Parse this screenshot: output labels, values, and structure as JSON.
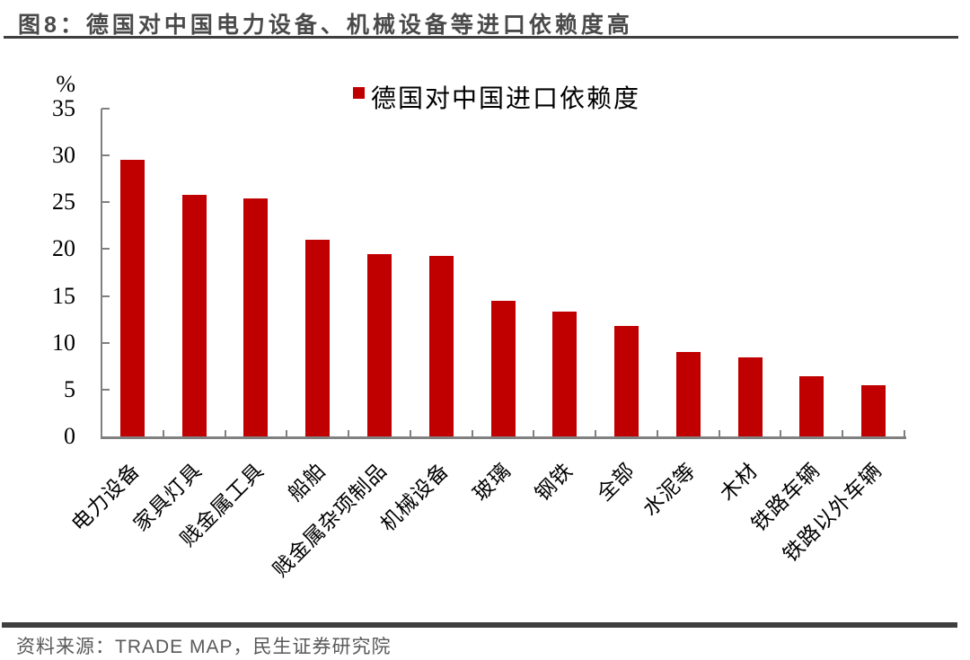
{
  "header": {
    "title": "图8：德国对中国电力设备、机械设备等进口依赖度高"
  },
  "footer": {
    "source": "资料来源：TRADE MAP，民生证券研究院"
  },
  "colors": {
    "accent": "#c00000",
    "title": "#4a4a4a",
    "rule": "#3f3f3f",
    "axis": "#808080",
    "text": "#000000",
    "source_text": "#595959"
  },
  "chart_data": {
    "type": "bar",
    "legend_label": "德国对中国进口依赖度",
    "legend_position": "top-center",
    "unit_label": "%",
    "categories": [
      "电力设备",
      "家具灯具",
      "贱金属工具",
      "船舶",
      "贱金属杂项制品",
      "机械设备",
      "玻璃",
      "钢铁",
      "全部",
      "水泥等",
      "木材",
      "铁路车辆",
      "铁路以外车辆"
    ],
    "values": [
      29.5,
      25.8,
      25.4,
      21.0,
      19.5,
      19.3,
      14.5,
      13.3,
      11.8,
      9.0,
      8.4,
      6.4,
      5.5
    ],
    "xlabel": "",
    "ylabel": "%",
    "ylim": [
      0,
      35
    ],
    "yticks": [
      0,
      5,
      10,
      15,
      20,
      25,
      30,
      35
    ],
    "grid": false,
    "x_label_rotation": -45,
    "bar_color": "#c00000"
  }
}
